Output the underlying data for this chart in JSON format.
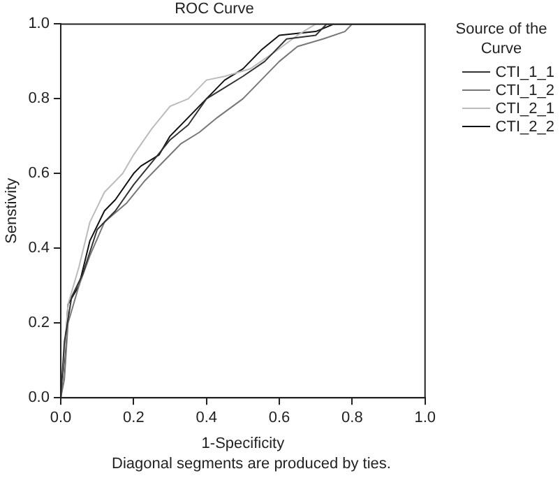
{
  "chart_data": {
    "type": "line",
    "title": "ROC Curve",
    "xlabel": "1-Specificity",
    "ylabel": "Senstivity",
    "legend_title": "Source of the Curve",
    "legend": "right",
    "marker": "none",
    "line_style": "solid",
    "annotations": [
      "Diagonal segments are produced by ties."
    ],
    "xlim": [
      0,
      1
    ],
    "xticks": [
      {
        "value": 0,
        "label": "0.0"
      },
      {
        "value": 0.2,
        "label": "0.2"
      },
      {
        "value": 0.4,
        "label": "0.4"
      },
      {
        "value": 0.6,
        "label": "0.6"
      },
      {
        "value": 0.8,
        "label": "0.8"
      },
      {
        "value": 1,
        "label": "1.0"
      }
    ],
    "ylim": [
      0,
      1
    ],
    "yticks": [
      {
        "value": 0,
        "label": "0.0"
      },
      {
        "value": 0.2,
        "label": "0.2"
      },
      {
        "value": 0.4,
        "label": "0.4"
      },
      {
        "value": 0.6,
        "label": "0.6"
      },
      {
        "value": 0.8,
        "label": "0.8"
      },
      {
        "value": 1,
        "label": "1.0"
      }
    ],
    "series": [
      {
        "name": "CTI_1_1",
        "color": "#333333",
        "x": [
          0,
          0.01,
          0.03,
          0.06,
          0.1,
          0.15,
          0.2,
          0.25,
          0.3,
          0.35,
          0.4,
          0.45,
          0.5,
          0.56,
          0.62,
          0.7,
          0.73,
          1
        ],
        "values": [
          0,
          0.15,
          0.27,
          0.33,
          0.45,
          0.5,
          0.57,
          0.63,
          0.69,
          0.73,
          0.8,
          0.83,
          0.86,
          0.9,
          0.96,
          0.97,
          1,
          1
        ]
      },
      {
        "name": "CTI_1_2",
        "color": "#777777",
        "x": [
          0,
          0.01,
          0.02,
          0.05,
          0.08,
          0.12,
          0.18,
          0.23,
          0.28,
          0.33,
          0.38,
          0.43,
          0.5,
          0.55,
          0.6,
          0.65,
          0.72,
          0.78,
          0.8,
          1
        ],
        "values": [
          0,
          0.05,
          0.2,
          0.3,
          0.38,
          0.47,
          0.52,
          0.58,
          0.63,
          0.68,
          0.71,
          0.75,
          0.8,
          0.85,
          0.9,
          0.94,
          0.96,
          0.98,
          1,
          1
        ]
      },
      {
        "name": "CTI_2_1",
        "color": "#bbbbbb",
        "x": [
          0,
          0.01,
          0.02,
          0.05,
          0.08,
          0.12,
          0.17,
          0.2,
          0.25,
          0.3,
          0.35,
          0.4,
          0.45,
          0.52,
          0.58,
          0.65,
          0.7,
          1
        ],
        "values": [
          0,
          0.12,
          0.25,
          0.35,
          0.47,
          0.55,
          0.6,
          0.65,
          0.72,
          0.78,
          0.8,
          0.85,
          0.86,
          0.88,
          0.92,
          0.97,
          1,
          1
        ]
      },
      {
        "name": "CTI_2_2",
        "color": "#111111",
        "x": [
          0,
          0.01,
          0.02,
          0.05,
          0.08,
          0.12,
          0.15,
          0.2,
          0.22,
          0.27,
          0.3,
          0.35,
          0.4,
          0.45,
          0.5,
          0.55,
          0.6,
          0.7,
          0.75,
          1
        ],
        "values": [
          0,
          0.1,
          0.25,
          0.3,
          0.42,
          0.5,
          0.53,
          0.6,
          0.62,
          0.65,
          0.7,
          0.75,
          0.8,
          0.85,
          0.88,
          0.93,
          0.97,
          0.98,
          1,
          1
        ]
      }
    ]
  }
}
